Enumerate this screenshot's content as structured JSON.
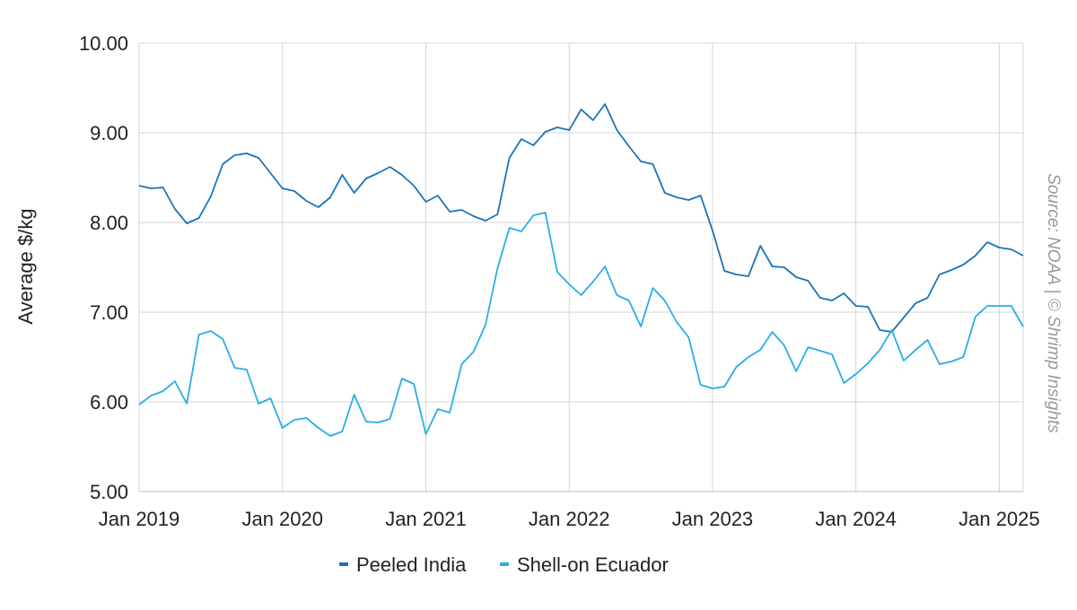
{
  "chart_data": {
    "type": "line",
    "ylabel": "Average $/kg",
    "ylim": [
      5,
      10
    ],
    "y_ticks": [
      "5.00",
      "6.00",
      "7.00",
      "8.00",
      "9.00",
      "10.00"
    ],
    "x_ticks": [
      "Jan 2019",
      "Jan 2020",
      "Jan 2021",
      "Jan 2022",
      "Jan 2023",
      "Jan 2024",
      "Jan 2025"
    ],
    "xlim": [
      "2019-01",
      "2025-03"
    ],
    "grid": true,
    "legend_position": "bottom",
    "source": "Source: NOAA | © Shrimp Insights",
    "x": [
      "2019-01",
      "2019-02",
      "2019-03",
      "2019-04",
      "2019-05",
      "2019-06",
      "2019-07",
      "2019-08",
      "2019-09",
      "2019-10",
      "2019-11",
      "2019-12",
      "2020-01",
      "2020-02",
      "2020-03",
      "2020-04",
      "2020-05",
      "2020-06",
      "2020-07",
      "2020-08",
      "2020-09",
      "2020-10",
      "2020-11",
      "2020-12",
      "2021-01",
      "2021-02",
      "2021-03",
      "2021-04",
      "2021-05",
      "2021-06",
      "2021-07",
      "2021-08",
      "2021-09",
      "2021-10",
      "2021-11",
      "2021-12",
      "2022-01",
      "2022-02",
      "2022-03",
      "2022-04",
      "2022-05",
      "2022-06",
      "2022-07",
      "2022-08",
      "2022-09",
      "2022-10",
      "2022-11",
      "2022-12",
      "2023-01",
      "2023-02",
      "2023-03",
      "2023-04",
      "2023-05",
      "2023-06",
      "2023-07",
      "2023-08",
      "2023-09",
      "2023-10",
      "2023-11",
      "2023-12",
      "2024-01",
      "2024-02",
      "2024-03",
      "2024-04",
      "2024-05",
      "2024-06",
      "2024-07",
      "2024-08",
      "2024-09",
      "2024-10",
      "2024-11",
      "2024-12",
      "2025-01",
      "2025-02",
      "2025-03"
    ],
    "series": [
      {
        "name": "Peeled India",
        "color": "#1a74b8",
        "values": [
          8.41,
          8.38,
          8.39,
          8.15,
          7.99,
          8.05,
          8.29,
          8.65,
          8.75,
          8.77,
          8.72,
          8.55,
          8.38,
          8.35,
          8.24,
          8.17,
          8.28,
          8.53,
          8.33,
          8.49,
          8.55,
          8.62,
          8.53,
          8.41,
          8.23,
          8.3,
          8.12,
          8.14,
          8.07,
          8.02,
          8.09,
          8.72,
          8.93,
          8.86,
          9.01,
          9.06,
          9.03,
          9.26,
          9.14,
          9.32,
          9.03,
          8.85,
          8.68,
          8.65,
          8.33,
          8.28,
          8.25,
          8.3,
          7.91,
          7.46,
          7.42,
          7.4,
          7.74,
          7.51,
          7.5,
          7.39,
          7.35,
          7.16,
          7.13,
          7.21,
          7.07,
          7.06,
          6.8,
          6.78,
          6.94,
          7.1,
          7.16,
          7.42,
          7.47,
          7.53,
          7.63,
          7.78,
          7.72,
          7.7,
          7.63
        ]
      },
      {
        "name": "Shell-on Ecuador",
        "color": "#29aee6",
        "values": [
          5.97,
          6.07,
          6.12,
          6.23,
          5.98,
          6.75,
          6.79,
          6.7,
          6.38,
          6.36,
          5.98,
          6.04,
          5.71,
          5.8,
          5.82,
          5.71,
          5.62,
          5.67,
          6.08,
          5.78,
          5.77,
          5.81,
          6.26,
          6.2,
          5.64,
          5.92,
          5.88,
          6.42,
          6.56,
          6.86,
          7.49,
          7.94,
          7.9,
          8.08,
          8.11,
          7.45,
          7.31,
          7.19,
          7.34,
          7.51,
          7.19,
          7.13,
          6.84,
          7.27,
          7.13,
          6.89,
          6.72,
          6.19,
          6.15,
          6.17,
          6.39,
          6.5,
          6.58,
          6.78,
          6.63,
          6.34,
          6.61,
          6.57,
          6.53,
          6.21,
          6.31,
          6.43,
          6.58,
          6.8,
          6.46,
          6.58,
          6.69,
          6.42,
          6.45,
          6.5,
          6.95,
          7.07,
          7.07,
          7.07,
          6.84
        ]
      }
    ]
  }
}
